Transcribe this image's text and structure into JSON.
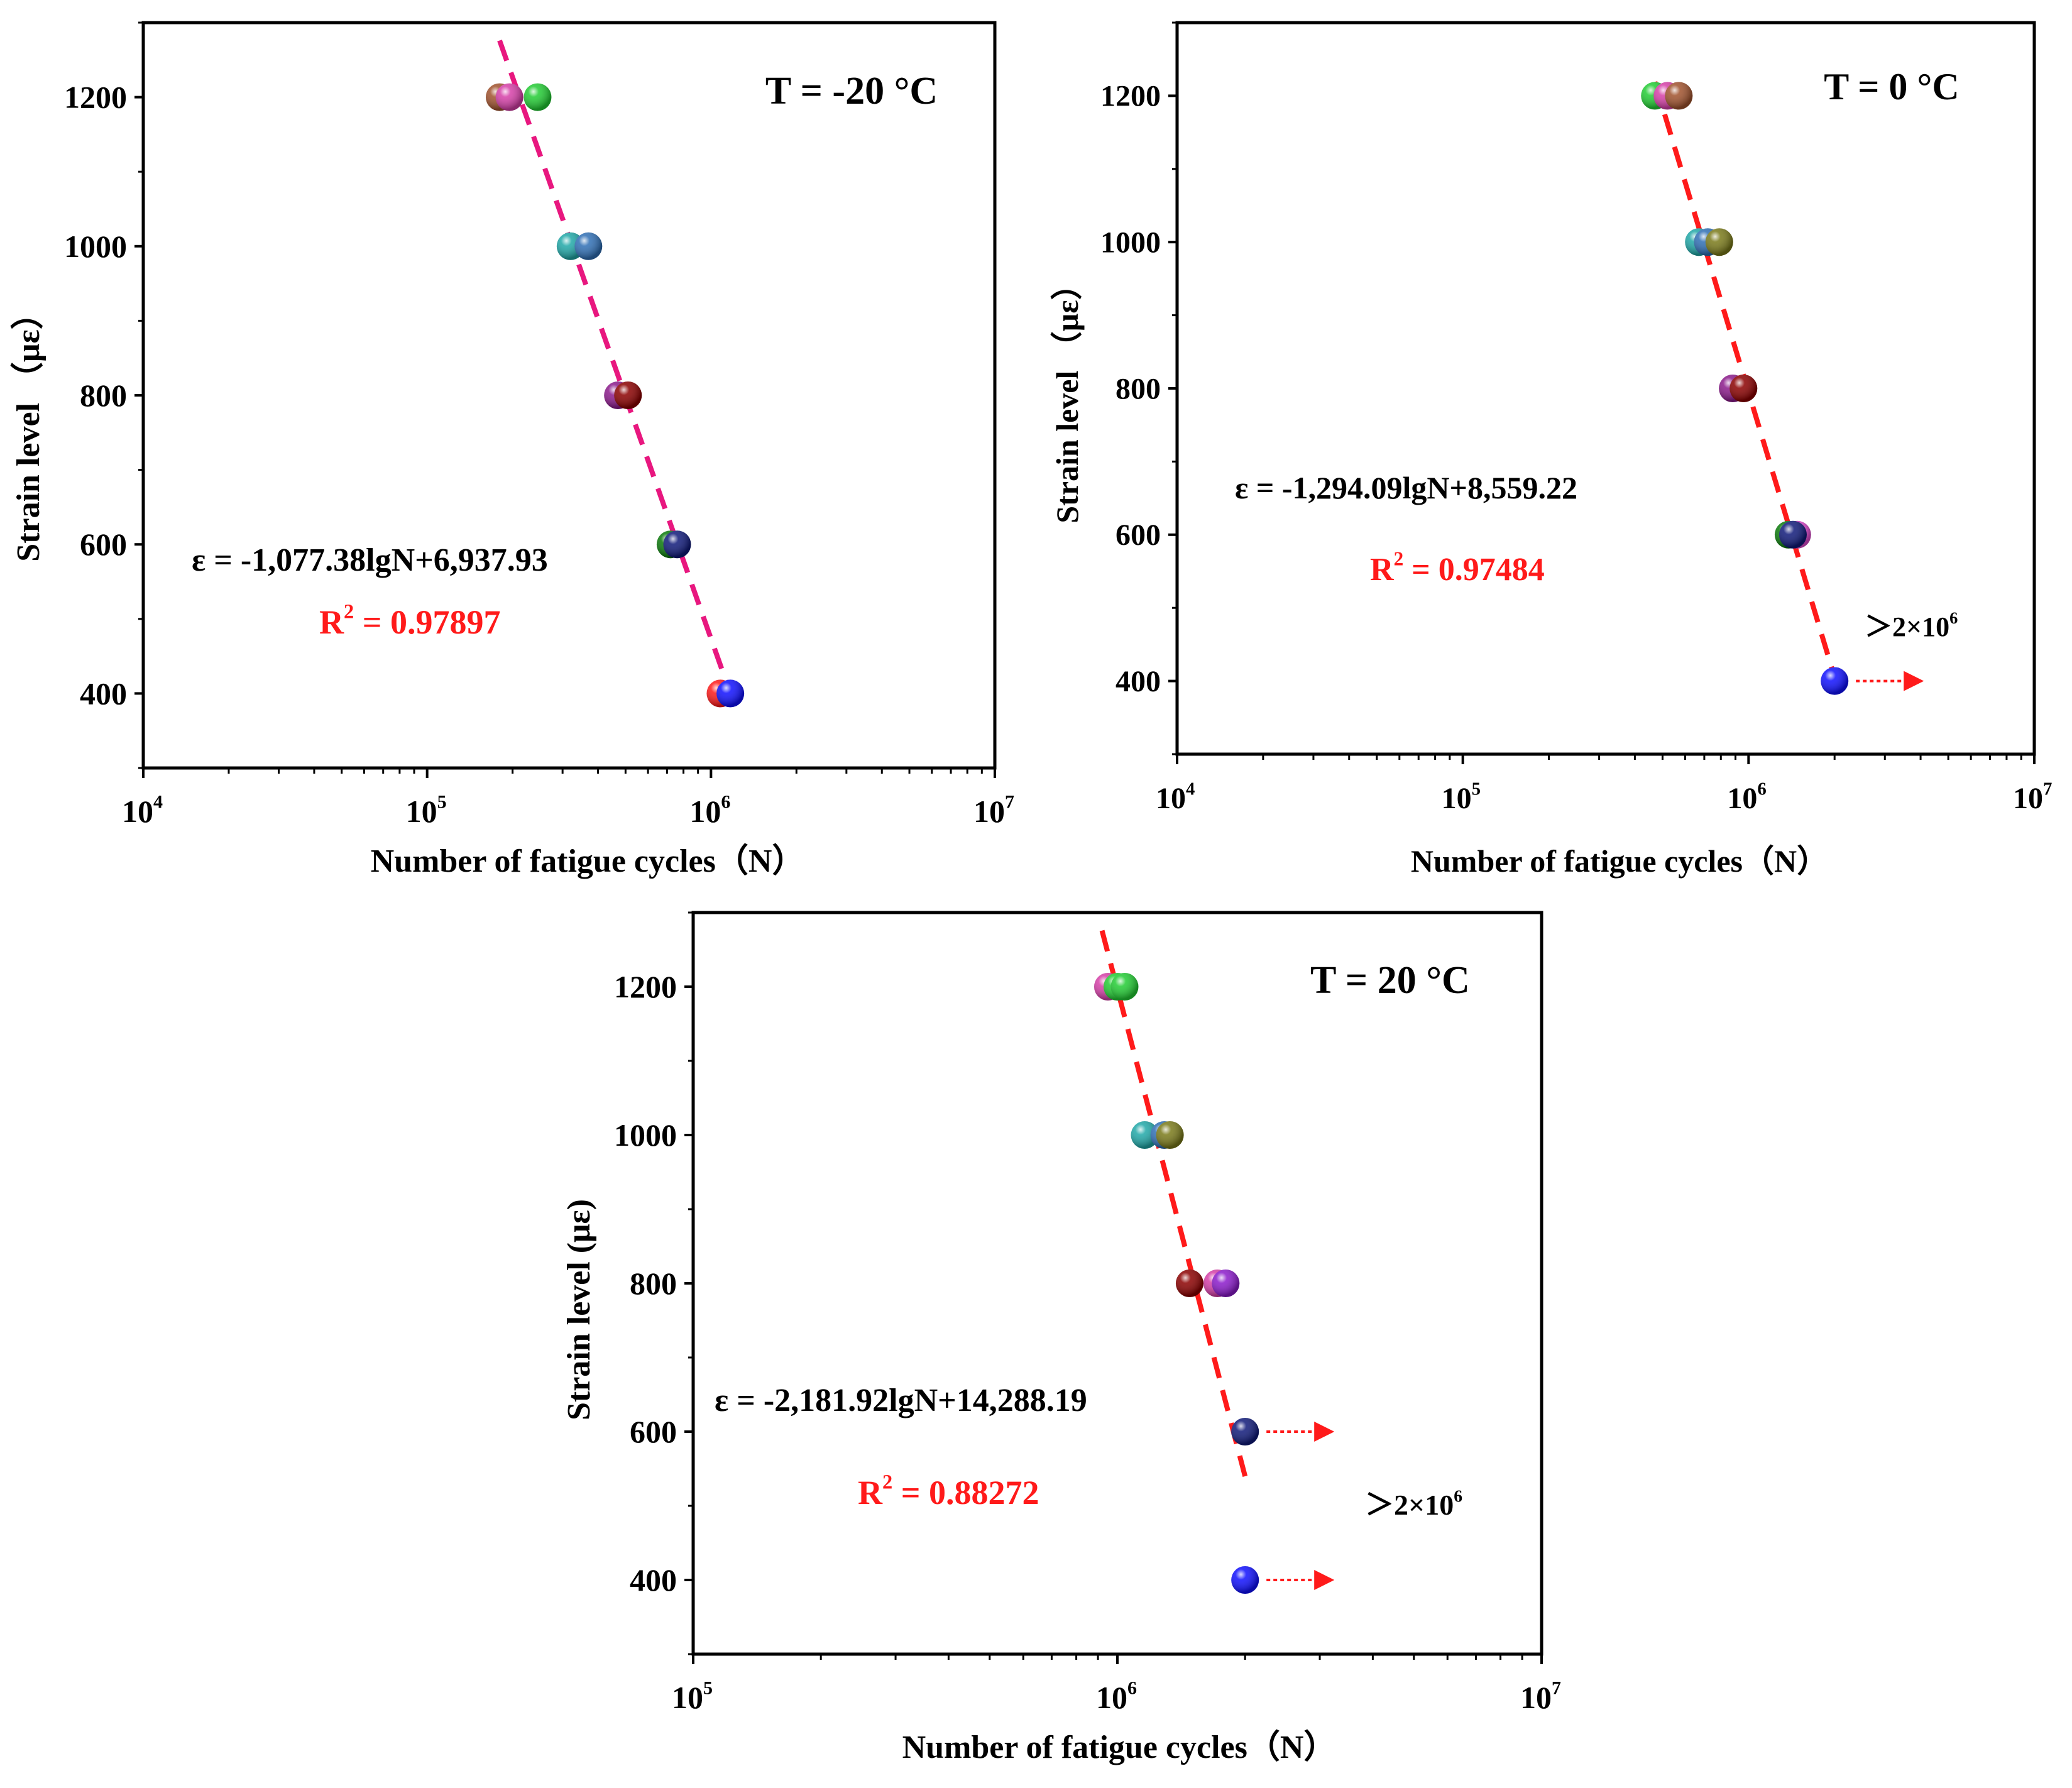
{
  "chart_data": [
    {
      "type": "scatter",
      "title": "T = -20 °C",
      "xlabel": "Number of fatigue cycles（N）",
      "ylabel": "Strain level （με）",
      "xscale": "log",
      "xlim": [
        10000,
        10000000
      ],
      "ylim": [
        300,
        1300
      ],
      "x_ticks": [
        {
          "value": 10000,
          "base": "10",
          "exp": "4"
        },
        {
          "value": 100000,
          "base": "10",
          "exp": "5"
        },
        {
          "value": 1000000,
          "base": "10",
          "exp": "6"
        },
        {
          "value": 10000000,
          "base": "10",
          "exp": "7"
        }
      ],
      "y_ticks": [
        400,
        600,
        800,
        1000,
        1200
      ],
      "equation": "ε = -1,077.38lgN+6,937.93",
      "r2_label": "R",
      "r2_sup": "2",
      "r2_value": " = 0.97897",
      "fit": {
        "slope": -1077.38,
        "intercept": 6937.93,
        "x_range": [
          180000,
          1150000
        ],
        "color": "#e8177f"
      },
      "points": [
        {
          "x": 180000,
          "y": 1200,
          "color": "#a0522d"
        },
        {
          "x": 195000,
          "y": 1200,
          "color": "#d63fa8"
        },
        {
          "x": 245000,
          "y": 1200,
          "color": "#22cc33"
        },
        {
          "x": 320000,
          "y": 1000,
          "color": "#20a8a8"
        },
        {
          "x": 370000,
          "y": 1000,
          "color": "#2f6fb5"
        },
        {
          "x": 470000,
          "y": 800,
          "color": "#8b1a8b"
        },
        {
          "x": 510000,
          "y": 800,
          "color": "#8b0000"
        },
        {
          "x": 720000,
          "y": 600,
          "color": "#0a7a0a"
        },
        {
          "x": 760000,
          "y": 600,
          "color": "#101a7a"
        },
        {
          "x": 1080000,
          "y": 400,
          "color": "#ff1a1a"
        },
        {
          "x": 1170000,
          "y": 400,
          "color": "#1010ff"
        }
      ],
      "runouts": [],
      "runout_label": ""
    },
    {
      "type": "scatter",
      "title": "T = 0 °C",
      "xlabel": "Number of fatigue cycles（N）",
      "ylabel": "Strain level （με）",
      "xscale": "log",
      "xlim": [
        10000,
        10000000
      ],
      "ylim": [
        300,
        1300
      ],
      "x_ticks": [
        {
          "value": 10000,
          "base": "10",
          "exp": "4"
        },
        {
          "value": 100000,
          "base": "10",
          "exp": "5"
        },
        {
          "value": 1000000,
          "base": "10",
          "exp": "6"
        },
        {
          "value": 10000000,
          "base": "10",
          "exp": "7"
        }
      ],
      "y_ticks": [
        400,
        600,
        800,
        1000,
        1200
      ],
      "equation": "ε = -1,294.09lgN+8,559.22",
      "r2_label": "R",
      "r2_sup": "2",
      "r2_value": " = 0.97484",
      "fit": {
        "slope": -1294.09,
        "intercept": 8559.22,
        "x_range": [
          470000,
          2050000
        ],
        "color": "#ff1a1a"
      },
      "points": [
        {
          "x": 470000,
          "y": 1200,
          "color": "#22cc33"
        },
        {
          "x": 520000,
          "y": 1200,
          "color": "#d63fa8"
        },
        {
          "x": 570000,
          "y": 1200,
          "color": "#a0522d"
        },
        {
          "x": 670000,
          "y": 1000,
          "color": "#20a8a8"
        },
        {
          "x": 720000,
          "y": 1000,
          "color": "#2f6fb5"
        },
        {
          "x": 790000,
          "y": 1000,
          "color": "#7a7a1a"
        },
        {
          "x": 880000,
          "y": 800,
          "color": "#8b1a8b"
        },
        {
          "x": 960000,
          "y": 800,
          "color": "#8b0000"
        },
        {
          "x": 1380000,
          "y": 600,
          "color": "#0a7a0a"
        },
        {
          "x": 1480000,
          "y": 600,
          "color": "#e04ad0"
        },
        {
          "x": 1430000,
          "y": 600,
          "color": "#101a7a"
        },
        {
          "x": 2000000,
          "y": 400,
          "color": "#1010ff"
        }
      ],
      "runouts": [
        {
          "x": 2000000,
          "y": 400
        }
      ],
      "runout_label": "＞2×10",
      "runout_sup": "6"
    },
    {
      "type": "scatter",
      "title": "T = 20 °C",
      "xlabel": "Number of fatigue cycles（N）",
      "ylabel": "Strain level (με)",
      "xscale": "log",
      "xlim": [
        100000,
        10000000
      ],
      "ylim": [
        300,
        1300
      ],
      "x_ticks": [
        {
          "value": 100000,
          "base": "10",
          "exp": "5"
        },
        {
          "value": 1000000,
          "base": "10",
          "exp": "6"
        },
        {
          "value": 10000000,
          "base": "10",
          "exp": "7"
        }
      ],
      "y_ticks": [
        400,
        600,
        800,
        1000,
        1200
      ],
      "equation": "ε = -2,181.92lgN+14,288.19",
      "r2_label": "R",
      "r2_sup": "2",
      "r2_value": " = 0.88272",
      "fit": {
        "slope": -2181.92,
        "intercept": 14288.19,
        "x_range": [
          920000,
          2000000
        ],
        "color": "#ff1a1a"
      },
      "points": [
        {
          "x": 950000,
          "y": 1200,
          "color": "#d63fa8"
        },
        {
          "x": 1000000,
          "y": 1200,
          "color": "#22cc33"
        },
        {
          "x": 1040000,
          "y": 1200,
          "color": "#22cc33"
        },
        {
          "x": 1160000,
          "y": 1000,
          "color": "#20a8a8"
        },
        {
          "x": 1290000,
          "y": 1000,
          "color": "#2f6fb5"
        },
        {
          "x": 1330000,
          "y": 1000,
          "color": "#7a7a1a"
        },
        {
          "x": 1480000,
          "y": 800,
          "color": "#8b0000"
        },
        {
          "x": 1720000,
          "y": 800,
          "color": "#d63fa8"
        },
        {
          "x": 1800000,
          "y": 800,
          "color": "#8b1acb"
        },
        {
          "x": 2000000,
          "y": 600,
          "color": "#101a7a"
        },
        {
          "x": 2000000,
          "y": 400,
          "color": "#1010ff"
        }
      ],
      "runouts": [
        {
          "x": 2000000,
          "y": 600
        },
        {
          "x": 2000000,
          "y": 400
        }
      ],
      "runout_label": "＞2×10",
      "runout_sup": "6"
    }
  ]
}
